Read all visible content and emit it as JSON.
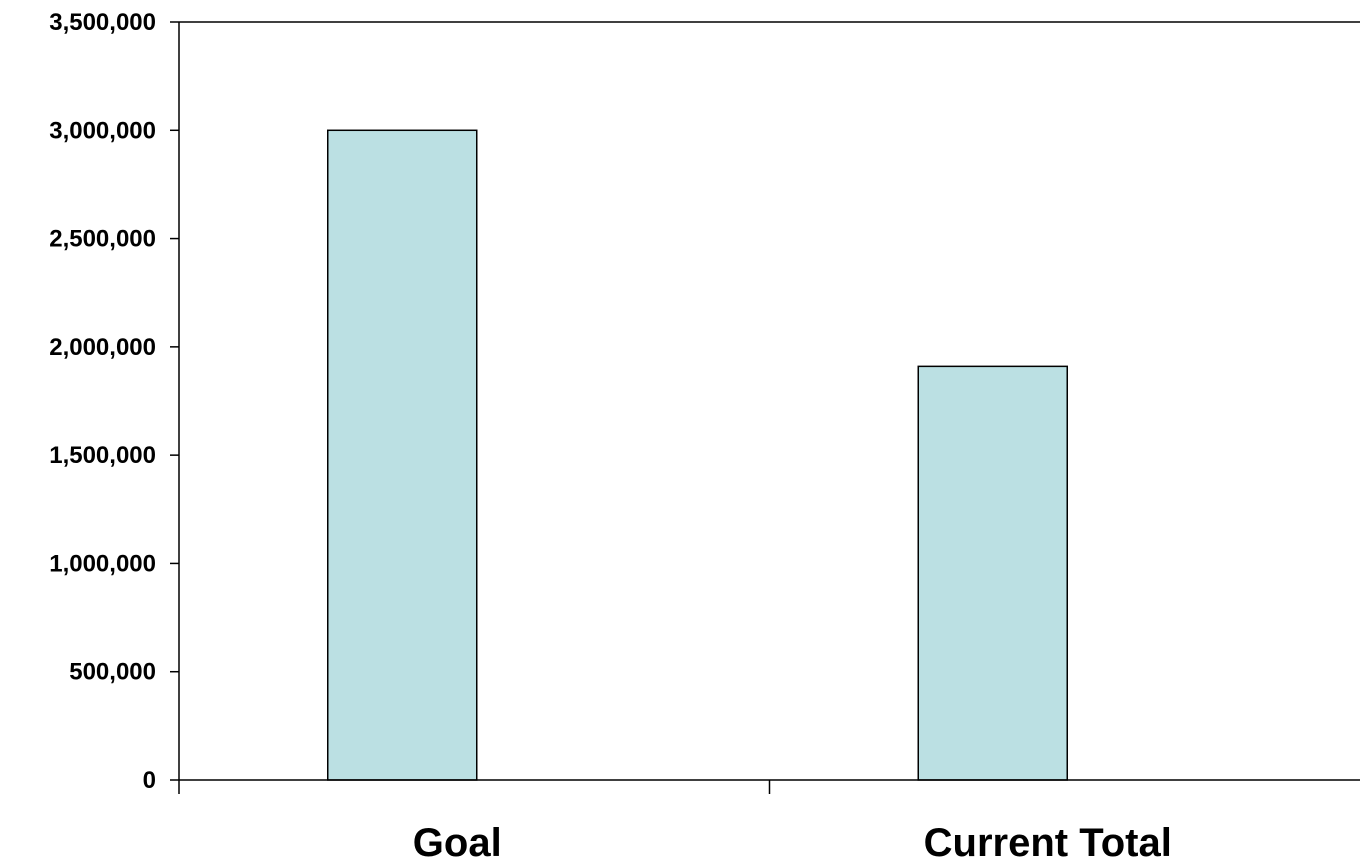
{
  "chart_data": {
    "type": "bar",
    "title": "",
    "xlabel": "",
    "ylabel": "",
    "categories": [
      "Goal",
      "Current Total"
    ],
    "values": [
      3000000,
      1910000
    ],
    "ylim": [
      0,
      3500000
    ],
    "yticks": [
      0,
      500000,
      1000000,
      1500000,
      2000000,
      2500000,
      3000000,
      3500000
    ],
    "ytick_labels": [
      "0",
      "500,000",
      "1,000,000",
      "1,500,000",
      "2,000,000",
      "2,500,000",
      "3,000,000",
      "3,500,000"
    ],
    "grid": false,
    "legend": "none",
    "bar_color": "#BBE0E3"
  }
}
